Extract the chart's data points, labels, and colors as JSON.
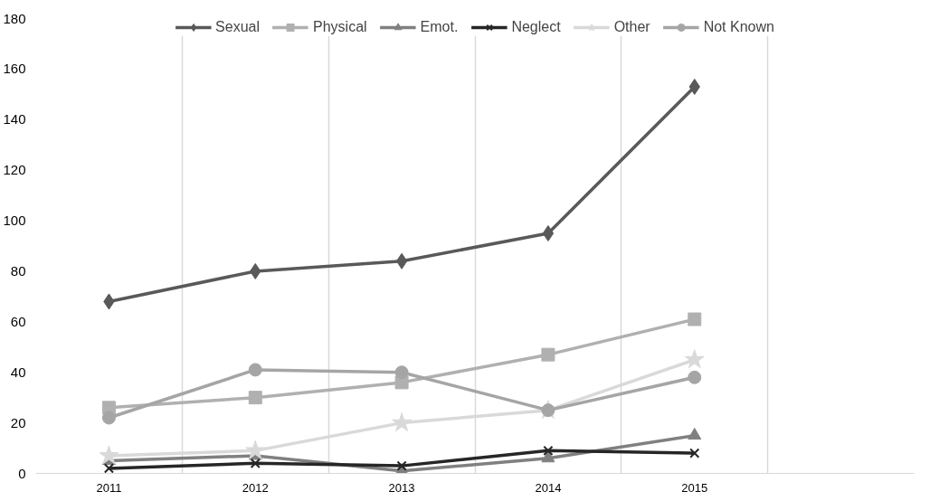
{
  "chart_data": {
    "type": "line",
    "categories": [
      "2011",
      "2012",
      "2013",
      "2014",
      "2015",
      null
    ],
    "series": [
      {
        "name": "Sexual",
        "color": "#595959",
        "marker": "diamond",
        "values": [
          68,
          80,
          84,
          95,
          153,
          null
        ]
      },
      {
        "name": "Physical",
        "color": "#b0b0b0",
        "marker": "square",
        "values": [
          26,
          30,
          36,
          47,
          61,
          null
        ]
      },
      {
        "name": "Emot.",
        "color": "#808080",
        "marker": "triangle",
        "values": [
          5,
          7,
          1,
          6,
          15,
          null
        ]
      },
      {
        "name": "Neglect",
        "color": "#262626",
        "marker": "cross",
        "values": [
          2,
          4,
          3,
          9,
          8,
          null
        ]
      },
      {
        "name": "Other",
        "color": "#d9d9d9",
        "marker": "star",
        "values": [
          7,
          9,
          20,
          25,
          45,
          null
        ]
      },
      {
        "name": "Not Known",
        "color": "#a5a5a5",
        "marker": "circle",
        "values": [
          22,
          41,
          40,
          25,
          38,
          null
        ]
      }
    ],
    "ylim": [
      0,
      180
    ],
    "yticks": [
      0,
      20,
      40,
      60,
      80,
      100,
      120,
      140,
      160,
      180
    ],
    "grid": "x",
    "legend": "top",
    "line_style": "solid"
  }
}
